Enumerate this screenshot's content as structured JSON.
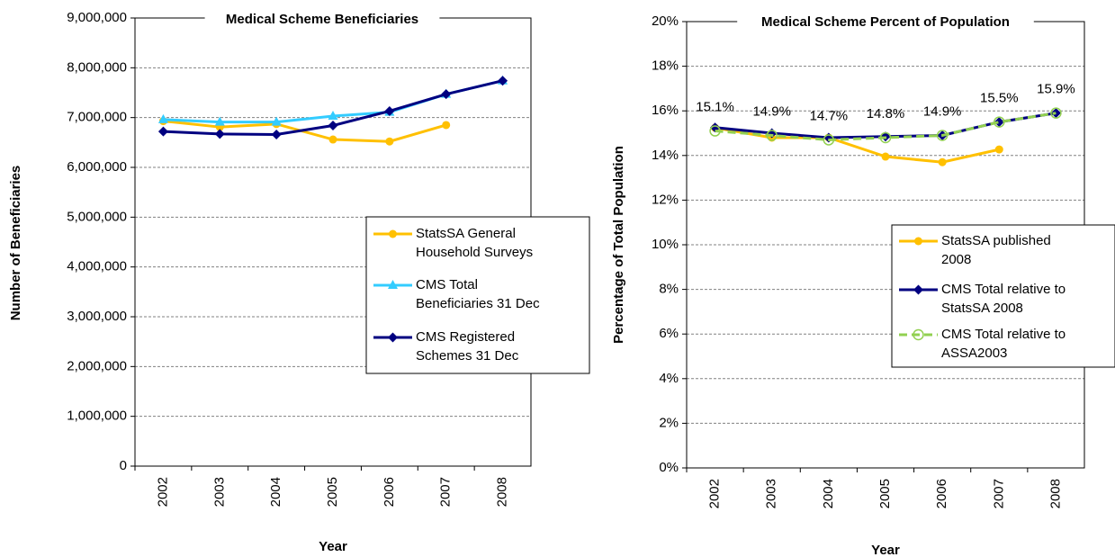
{
  "chart_data": [
    {
      "type": "line",
      "title": "Medical Scheme Beneficiaries",
      "x_label": "Year",
      "y_label": "Number of Beneficiaries",
      "categories": [
        "2002",
        "2003",
        "2004",
        "2005",
        "2006",
        "2007",
        "2008"
      ],
      "ylim": [
        0,
        9000000
      ],
      "yticks": [
        {
          "value": 0,
          "label": "0"
        },
        {
          "value": 1000000,
          "label": "1,000,000"
        },
        {
          "value": 2000000,
          "label": "2,000,000"
        },
        {
          "value": 3000000,
          "label": "3,000,000"
        },
        {
          "value": 4000000,
          "label": "4,000,000"
        },
        {
          "value": 5000000,
          "label": "5,000,000"
        },
        {
          "value": 6000000,
          "label": "6,000,000"
        },
        {
          "value": 7000000,
          "label": "7,000,000"
        },
        {
          "value": 8000000,
          "label": "8,000,000"
        },
        {
          "value": 9000000,
          "label": "9,000,000"
        }
      ],
      "grid": true,
      "legend": "right",
      "series": [
        {
          "name": "StatsSA General Household Surveys",
          "color": "#ffc000",
          "marker": "circle",
          "values": [
            6930000,
            6810000,
            6870000,
            6560000,
            6520000,
            6850000,
            null
          ]
        },
        {
          "name": "CMS Total Beneficiaries 31 Dec",
          "color": "#33ccff",
          "marker": "triangle",
          "values": [
            6960000,
            6910000,
            6910000,
            7030000,
            7110000,
            7470000,
            7740000
          ]
        },
        {
          "name": "CMS Registered Schemes 31 Dec",
          "color": "#000080",
          "marker": "diamond",
          "values": [
            6720000,
            6670000,
            6660000,
            6840000,
            7130000,
            7470000,
            7740000
          ]
        }
      ]
    },
    {
      "type": "line",
      "title": "Medical Scheme Percent of Population",
      "x_label": "Year",
      "y_label": "Percentage of Total Population",
      "categories": [
        "2002",
        "2003",
        "2004",
        "2005",
        "2006",
        "2007",
        "2008"
      ],
      "ylim": [
        0,
        20
      ],
      "yticks": [
        {
          "value": 0,
          "label": "0%"
        },
        {
          "value": 2,
          "label": "2%"
        },
        {
          "value": 4,
          "label": "4%"
        },
        {
          "value": 6,
          "label": "6%"
        },
        {
          "value": 8,
          "label": "8%"
        },
        {
          "value": 10,
          "label": "10%"
        },
        {
          "value": 12,
          "label": "12%"
        },
        {
          "value": 14,
          "label": "14%"
        },
        {
          "value": 16,
          "label": "16%"
        },
        {
          "value": 18,
          "label": "18%"
        },
        {
          "value": 20,
          "label": "20%"
        }
      ],
      "grid": true,
      "legend": "right",
      "series": [
        {
          "name": "StatsSA published 2008",
          "color": "#ffc000",
          "marker": "circle",
          "values": [
            15.24,
            14.8,
            14.8,
            13.95,
            13.7,
            14.27,
            null
          ]
        },
        {
          "name": "CMS Total relative to StatsSA 2008",
          "color": "#000080",
          "marker": "diamond",
          "values": [
            15.25,
            15.0,
            14.8,
            14.85,
            14.9,
            15.5,
            15.9
          ]
        },
        {
          "name": "CMS Total relative to ASSA2003",
          "color": "#92d050",
          "marker": "open-circle",
          "dashed": true,
          "values": [
            15.1,
            14.9,
            14.7,
            14.8,
            14.9,
            15.5,
            15.9
          ],
          "value_labels": [
            "15.1%",
            "14.9%",
            "14.7%",
            "14.8%",
            "14.9%",
            "15.5%",
            "15.9%"
          ]
        }
      ]
    }
  ]
}
